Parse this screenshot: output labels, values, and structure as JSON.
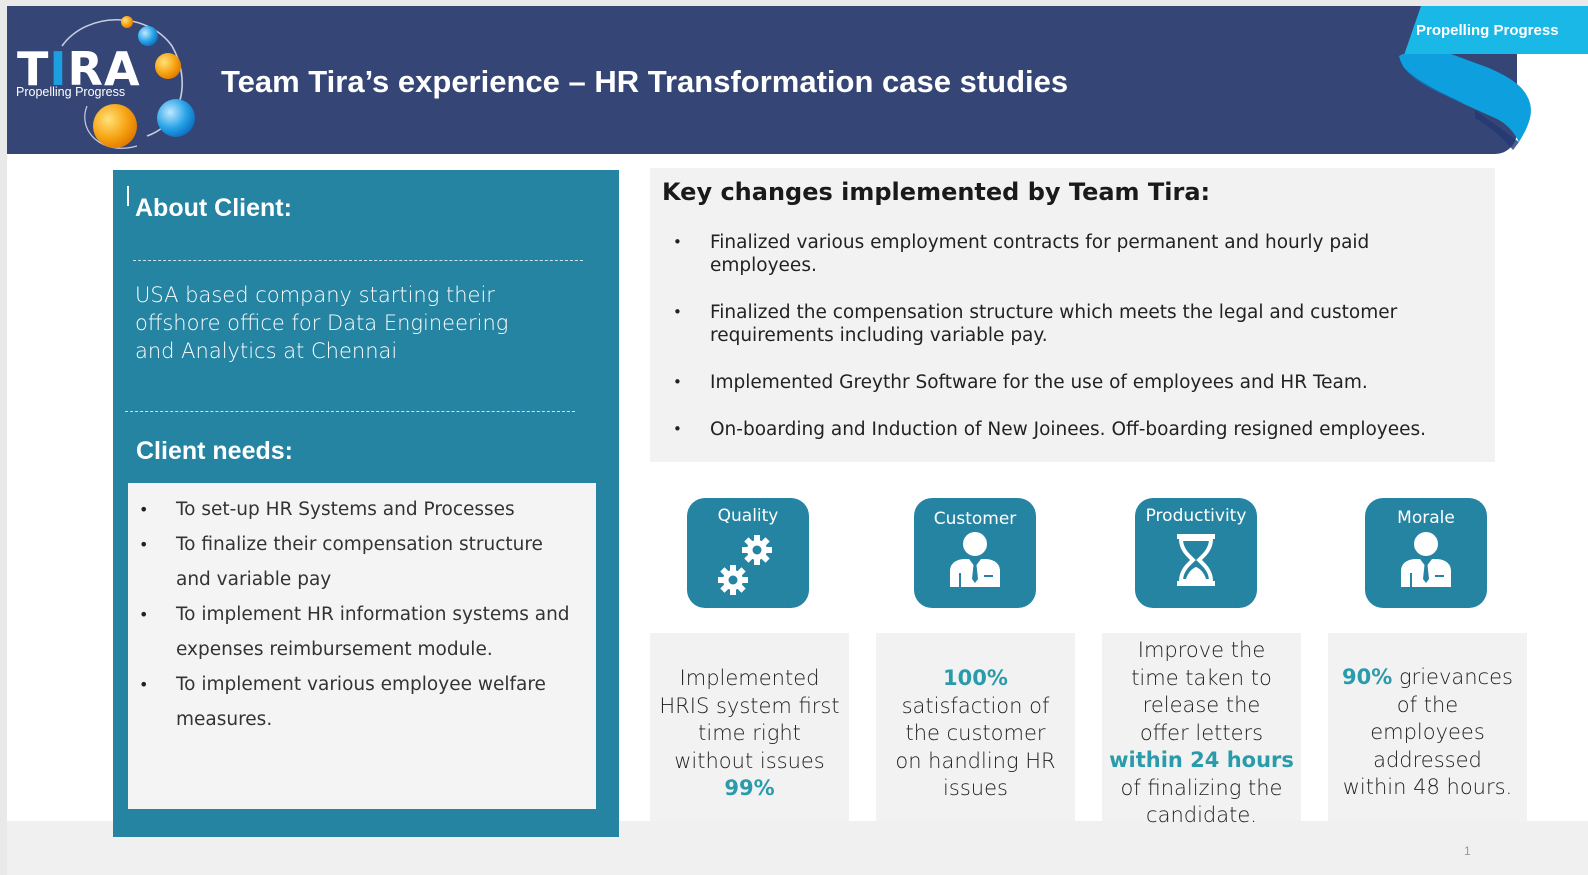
{
  "header": {
    "logo_text": "TIRA",
    "logo_tagline": "Propelling Progress",
    "title": "Team Tira’s experience – HR Transformation case studies",
    "ribbon_text": "Propelling Progress"
  },
  "colors": {
    "header_bg": "#354575",
    "teal": "#2684a3",
    "highlight": "#2a9bab",
    "ribbon": "#1ab0e0"
  },
  "about": {
    "heading": "About Client:",
    "lines": [
      "USA based company starting their",
      "offshore office for Data Engineering",
      "and Analytics at Chennai"
    ]
  },
  "needs": {
    "heading": "Client needs:",
    "items": [
      [
        "To set-up HR Systems and Processes"
      ],
      [
        "To finalize their compensation structure",
        "and variable pay"
      ],
      [
        "To implement HR information systems and",
        "expenses reimbursement module."
      ],
      [
        "To implement various employee welfare",
        "measures."
      ]
    ]
  },
  "key_changes": {
    "heading": "Key changes implemented by Team Tira:",
    "items": [
      [
        "Finalized various employment contracts for permanent and hourly paid",
        "employees."
      ],
      [
        "Finalized the compensation structure which meets the legal and customer",
        "requirements including variable pay."
      ],
      [
        "Implemented Greythr Software for the use of employees and HR Team."
      ],
      [
        "On-boarding and Induction of New Joinees. Off-boarding resigned employees."
      ]
    ]
  },
  "tiles": [
    {
      "label": "Quality",
      "icon": "gears-icon"
    },
    {
      "label": "Customer",
      "icon": "businessman-icon"
    },
    {
      "label": "Productivity",
      "icon": "hourglass-icon"
    },
    {
      "label": "Morale",
      "icon": "businessman-icon"
    }
  ],
  "cards": [
    {
      "lines": [
        [
          {
            "t": "Implemented"
          }
        ],
        [
          {
            "t": "HRIS system first"
          }
        ],
        [
          {
            "t": "time right"
          }
        ],
        [
          {
            "t": "without issues"
          }
        ],
        [
          {
            "t": "99%",
            "hl": true
          }
        ]
      ]
    },
    {
      "lines": [
        [
          {
            "t": "100%",
            "hl": true
          }
        ],
        [
          {
            "t": "satisfaction of"
          }
        ],
        [
          {
            "t": "the customer"
          }
        ],
        [
          {
            "t": "on handling HR"
          }
        ],
        [
          {
            "t": "issues"
          }
        ]
      ]
    },
    {
      "lines": [
        [
          {
            "t": "Improve the"
          }
        ],
        [
          {
            "t": "time taken to"
          }
        ],
        [
          {
            "t": "release the"
          }
        ],
        [
          {
            "t": "offer letters"
          }
        ],
        [
          {
            "t": "within 24 hours",
            "hl": true
          }
        ],
        [
          {
            "t": "of finalizing the"
          }
        ],
        [
          {
            "t": "candidate."
          }
        ]
      ]
    },
    {
      "lines": [
        [
          {
            "t": "90%",
            "hl": true
          },
          {
            "t": " grievances"
          }
        ],
        [
          {
            "t": "of the"
          }
        ],
        [
          {
            "t": "employees"
          }
        ],
        [
          {
            "t": "addressed"
          }
        ],
        [
          {
            "t": "within 48 hours."
          }
        ]
      ]
    }
  ],
  "page_number": "1"
}
